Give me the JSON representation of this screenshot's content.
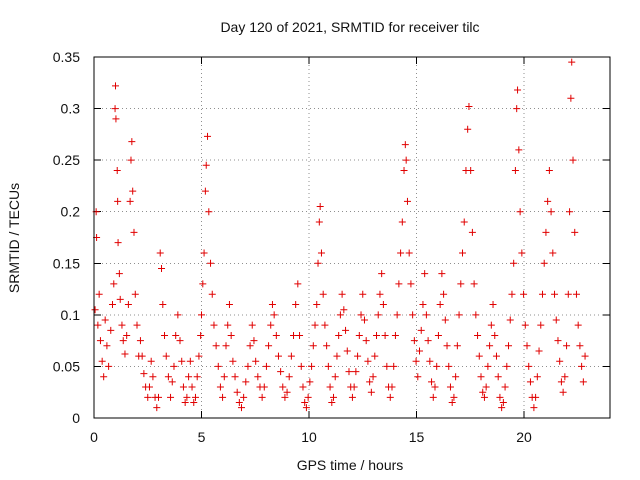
{
  "chart_data": {
    "type": "scatter",
    "title": "Day 120 of 2021, SRMTID for receiver tilc",
    "xlabel": "GPS time / hours",
    "ylabel": "SRMTID / TECUs",
    "xlim": [
      0,
      24
    ],
    "ylim": [
      0,
      0.35
    ],
    "x_ticks": [
      0,
      5,
      10,
      15,
      20
    ],
    "x_tick_labels": [
      "0",
      "5",
      "10",
      "15",
      "20"
    ],
    "y_ticks": [
      0,
      0.05,
      0.1,
      0.15,
      0.2,
      0.25,
      0.3,
      0.35
    ],
    "y_tick_labels": [
      "0",
      "0.05",
      "0.1",
      "0.15",
      "0.2",
      "0.25",
      "0.3",
      "0.35"
    ],
    "grid": true,
    "marker": "plus",
    "series": [
      {
        "name": "SRMTID",
        "color": "#e00000",
        "points": [
          [
            0.05,
            0.105
          ],
          [
            0.1,
            0.2
          ],
          [
            0.12,
            0.175
          ],
          [
            0.18,
            0.09
          ],
          [
            0.24,
            0.12
          ],
          [
            0.3,
            0.075
          ],
          [
            0.38,
            0.055
          ],
          [
            0.45,
            0.04
          ],
          [
            0.52,
            0.095
          ],
          [
            0.6,
            0.07
          ],
          [
            0.68,
            0.05
          ],
          [
            0.78,
            0.085
          ],
          [
            0.86,
            0.11
          ],
          [
            0.92,
            0.13
          ],
          [
            0.98,
            0.3
          ],
          [
            1.0,
            0.322
          ],
          [
            1.02,
            0.29
          ],
          [
            1.08,
            0.24
          ],
          [
            1.1,
            0.21
          ],
          [
            1.12,
            0.17
          ],
          [
            1.18,
            0.14
          ],
          [
            1.22,
            0.115
          ],
          [
            1.3,
            0.09
          ],
          [
            1.36,
            0.075
          ],
          [
            1.44,
            0.062
          ],
          [
            1.52,
            0.08
          ],
          [
            1.6,
            0.11
          ],
          [
            1.68,
            0.21
          ],
          [
            1.72,
            0.25
          ],
          [
            1.76,
            0.268
          ],
          [
            1.8,
            0.22
          ],
          [
            1.86,
            0.18
          ],
          [
            1.92,
            0.12
          ],
          [
            2.0,
            0.09
          ],
          [
            2.08,
            0.06
          ],
          [
            2.16,
            0.075
          ],
          [
            2.24,
            0.06
          ],
          [
            2.32,
            0.043
          ],
          [
            2.4,
            0.03
          ],
          [
            2.5,
            0.02
          ],
          [
            2.58,
            0.03
          ],
          [
            2.66,
            0.055
          ],
          [
            2.74,
            0.04
          ],
          [
            2.84,
            0.02
          ],
          [
            2.92,
            0.01
          ],
          [
            3.0,
            0.02
          ],
          [
            3.08,
            0.16
          ],
          [
            3.14,
            0.145
          ],
          [
            3.2,
            0.11
          ],
          [
            3.28,
            0.08
          ],
          [
            3.36,
            0.06
          ],
          [
            3.46,
            0.04
          ],
          [
            3.56,
            0.02
          ],
          [
            3.64,
            0.035
          ],
          [
            3.72,
            0.05
          ],
          [
            3.8,
            0.08
          ],
          [
            3.9,
            0.1
          ],
          [
            4.0,
            0.075
          ],
          [
            4.08,
            0.055
          ],
          [
            4.16,
            0.03
          ],
          [
            4.24,
            0.015
          ],
          [
            4.32,
            0.02
          ],
          [
            4.4,
            0.04
          ],
          [
            4.48,
            0.055
          ],
          [
            4.56,
            0.03
          ],
          [
            4.64,
            0.015
          ],
          [
            4.72,
            0.02
          ],
          [
            4.8,
            0.04
          ],
          [
            4.88,
            0.06
          ],
          [
            4.96,
            0.08
          ],
          [
            5.0,
            0.1
          ],
          [
            5.06,
            0.13
          ],
          [
            5.12,
            0.16
          ],
          [
            5.18,
            0.22
          ],
          [
            5.22,
            0.245
          ],
          [
            5.28,
            0.273
          ],
          [
            5.34,
            0.2
          ],
          [
            5.42,
            0.15
          ],
          [
            5.5,
            0.12
          ],
          [
            5.58,
            0.09
          ],
          [
            5.68,
            0.07
          ],
          [
            5.78,
            0.05
          ],
          [
            5.88,
            0.03
          ],
          [
            5.98,
            0.02
          ],
          [
            6.06,
            0.04
          ],
          [
            6.14,
            0.07
          ],
          [
            6.22,
            0.09
          ],
          [
            6.3,
            0.11
          ],
          [
            6.38,
            0.08
          ],
          [
            6.46,
            0.055
          ],
          [
            6.56,
            0.04
          ],
          [
            6.66,
            0.025
          ],
          [
            6.76,
            0.015
          ],
          [
            6.86,
            0.01
          ],
          [
            6.96,
            0.02
          ],
          [
            7.06,
            0.035
          ],
          [
            7.16,
            0.05
          ],
          [
            7.26,
            0.07
          ],
          [
            7.36,
            0.09
          ],
          [
            7.44,
            0.075
          ],
          [
            7.52,
            0.055
          ],
          [
            7.62,
            0.04
          ],
          [
            7.72,
            0.03
          ],
          [
            7.82,
            0.02
          ],
          [
            7.92,
            0.03
          ],
          [
            8.02,
            0.05
          ],
          [
            8.12,
            0.07
          ],
          [
            8.22,
            0.09
          ],
          [
            8.3,
            0.11
          ],
          [
            8.38,
            0.1
          ],
          [
            8.48,
            0.08
          ],
          [
            8.58,
            0.06
          ],
          [
            8.68,
            0.045
          ],
          [
            8.78,
            0.03
          ],
          [
            8.88,
            0.02
          ],
          [
            8.98,
            0.025
          ],
          [
            9.08,
            0.04
          ],
          [
            9.18,
            0.06
          ],
          [
            9.28,
            0.08
          ],
          [
            9.38,
            0.11
          ],
          [
            9.48,
            0.13
          ],
          [
            9.56,
            0.08
          ],
          [
            9.64,
            0.05
          ],
          [
            9.72,
            0.03
          ],
          [
            9.8,
            0.015
          ],
          [
            9.88,
            0.01
          ],
          [
            9.96,
            0.02
          ],
          [
            10.04,
            0.035
          ],
          [
            10.12,
            0.05
          ],
          [
            10.2,
            0.07
          ],
          [
            10.28,
            0.09
          ],
          [
            10.36,
            0.11
          ],
          [
            10.42,
            0.15
          ],
          [
            10.48,
            0.19
          ],
          [
            10.52,
            0.205
          ],
          [
            10.58,
            0.16
          ],
          [
            10.66,
            0.12
          ],
          [
            10.74,
            0.09
          ],
          [
            10.82,
            0.07
          ],
          [
            10.9,
            0.05
          ],
          [
            10.98,
            0.03
          ],
          [
            11.06,
            0.015
          ],
          [
            11.14,
            0.02
          ],
          [
            11.22,
            0.04
          ],
          [
            11.3,
            0.06
          ],
          [
            11.38,
            0.08
          ],
          [
            11.46,
            0.1
          ],
          [
            11.54,
            0.12
          ],
          [
            11.62,
            0.105
          ],
          [
            11.7,
            0.085
          ],
          [
            11.78,
            0.065
          ],
          [
            11.86,
            0.045
          ],
          [
            11.94,
            0.03
          ],
          [
            12.02,
            0.02
          ],
          [
            12.1,
            0.03
          ],
          [
            12.18,
            0.045
          ],
          [
            12.26,
            0.06
          ],
          [
            12.34,
            0.08
          ],
          [
            12.42,
            0.1
          ],
          [
            12.5,
            0.12
          ],
          [
            12.58,
            0.095
          ],
          [
            12.66,
            0.075
          ],
          [
            12.74,
            0.055
          ],
          [
            12.82,
            0.035
          ],
          [
            12.9,
            0.025
          ],
          [
            12.98,
            0.04
          ],
          [
            13.06,
            0.06
          ],
          [
            13.14,
            0.08
          ],
          [
            13.22,
            0.1
          ],
          [
            13.3,
            0.12
          ],
          [
            13.38,
            0.14
          ],
          [
            13.46,
            0.11
          ],
          [
            13.54,
            0.08
          ],
          [
            13.62,
            0.05
          ],
          [
            13.7,
            0.03
          ],
          [
            13.78,
            0.02
          ],
          [
            13.86,
            0.03
          ],
          [
            13.94,
            0.05
          ],
          [
            14.02,
            0.08
          ],
          [
            14.1,
            0.1
          ],
          [
            14.18,
            0.13
          ],
          [
            14.26,
            0.16
          ],
          [
            14.34,
            0.19
          ],
          [
            14.42,
            0.24
          ],
          [
            14.48,
            0.265
          ],
          [
            14.52,
            0.25
          ],
          [
            14.58,
            0.21
          ],
          [
            14.66,
            0.16
          ],
          [
            14.74,
            0.13
          ],
          [
            14.82,
            0.1
          ],
          [
            14.9,
            0.075
          ],
          [
            14.98,
            0.055
          ],
          [
            15.06,
            0.04
          ],
          [
            15.14,
            0.065
          ],
          [
            15.22,
            0.085
          ],
          [
            15.3,
            0.11
          ],
          [
            15.38,
            0.14
          ],
          [
            15.46,
            0.1
          ],
          [
            15.54,
            0.075
          ],
          [
            15.62,
            0.055
          ],
          [
            15.7,
            0.035
          ],
          [
            15.78,
            0.02
          ],
          [
            15.86,
            0.03
          ],
          [
            15.94,
            0.05
          ],
          [
            16.02,
            0.08
          ],
          [
            16.1,
            0.11
          ],
          [
            16.18,
            0.14
          ],
          [
            16.26,
            0.12
          ],
          [
            16.34,
            0.095
          ],
          [
            16.42,
            0.07
          ],
          [
            16.5,
            0.05
          ],
          [
            16.58,
            0.03
          ],
          [
            16.66,
            0.015
          ],
          [
            16.74,
            0.02
          ],
          [
            16.82,
            0.04
          ],
          [
            16.9,
            0.07
          ],
          [
            16.98,
            0.1
          ],
          [
            17.06,
            0.13
          ],
          [
            17.14,
            0.16
          ],
          [
            17.22,
            0.19
          ],
          [
            17.3,
            0.24
          ],
          [
            17.38,
            0.28
          ],
          [
            17.44,
            0.302
          ],
          [
            17.52,
            0.24
          ],
          [
            17.6,
            0.18
          ],
          [
            17.68,
            0.13
          ],
          [
            17.76,
            0.1
          ],
          [
            17.84,
            0.08
          ],
          [
            17.92,
            0.06
          ],
          [
            18.0,
            0.04
          ],
          [
            18.08,
            0.025
          ],
          [
            18.16,
            0.02
          ],
          [
            18.24,
            0.03
          ],
          [
            18.32,
            0.05
          ],
          [
            18.4,
            0.07
          ],
          [
            18.48,
            0.09
          ],
          [
            18.56,
            0.11
          ],
          [
            18.64,
            0.08
          ],
          [
            18.72,
            0.06
          ],
          [
            18.8,
            0.04
          ],
          [
            18.88,
            0.02
          ],
          [
            18.96,
            0.01
          ],
          [
            19.04,
            0.015
          ],
          [
            19.12,
            0.03
          ],
          [
            19.2,
            0.05
          ],
          [
            19.28,
            0.07
          ],
          [
            19.36,
            0.095
          ],
          [
            19.44,
            0.12
          ],
          [
            19.52,
            0.15
          ],
          [
            19.6,
            0.24
          ],
          [
            19.66,
            0.3
          ],
          [
            19.7,
            0.318
          ],
          [
            19.76,
            0.26
          ],
          [
            19.82,
            0.2
          ],
          [
            19.9,
            0.16
          ],
          [
            19.98,
            0.12
          ],
          [
            20.06,
            0.09
          ],
          [
            20.14,
            0.07
          ],
          [
            20.22,
            0.05
          ],
          [
            20.3,
            0.035
          ],
          [
            20.38,
            0.02
          ],
          [
            20.46,
            0.01
          ],
          [
            20.54,
            0.02
          ],
          [
            20.62,
            0.04
          ],
          [
            20.7,
            0.065
          ],
          [
            20.78,
            0.09
          ],
          [
            20.86,
            0.12
          ],
          [
            20.94,
            0.15
          ],
          [
            21.02,
            0.18
          ],
          [
            21.1,
            0.21
          ],
          [
            21.18,
            0.24
          ],
          [
            21.26,
            0.2
          ],
          [
            21.34,
            0.16
          ],
          [
            21.42,
            0.12
          ],
          [
            21.5,
            0.095
          ],
          [
            21.58,
            0.075
          ],
          [
            21.66,
            0.055
          ],
          [
            21.74,
            0.035
          ],
          [
            21.82,
            0.025
          ],
          [
            21.9,
            0.04
          ],
          [
            21.98,
            0.07
          ],
          [
            22.06,
            0.12
          ],
          [
            22.12,
            0.2
          ],
          [
            22.18,
            0.31
          ],
          [
            22.22,
            0.345
          ],
          [
            22.28,
            0.25
          ],
          [
            22.36,
            0.18
          ],
          [
            22.44,
            0.12
          ],
          [
            22.52,
            0.09
          ],
          [
            22.6,
            0.07
          ],
          [
            22.68,
            0.05
          ],
          [
            22.76,
            0.035
          ],
          [
            22.84,
            0.06
          ]
        ]
      }
    ]
  }
}
